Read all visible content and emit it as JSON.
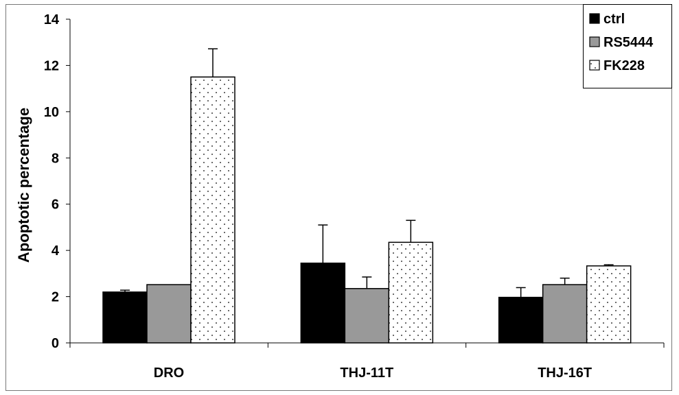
{
  "chart_data": {
    "type": "bar",
    "categories": [
      "DRO",
      "THJ-11T",
      "THJ-16T"
    ],
    "series": [
      {
        "name": "ctrl",
        "values": [
          2.2,
          3.45,
          1.97
        ],
        "errors": [
          0.08,
          1.65,
          0.42
        ],
        "color": "#000000",
        "fill": "solid"
      },
      {
        "name": "RS5444",
        "values": [
          2.52,
          2.35,
          2.52
        ],
        "errors": [
          0.0,
          0.5,
          0.28
        ],
        "color": "#999999",
        "fill": "solid"
      },
      {
        "name": "FK228",
        "values": [
          11.5,
          4.35,
          3.33
        ],
        "errors": [
          1.22,
          0.95,
          0.05
        ],
        "color": "#ffffff",
        "fill": "dots"
      }
    ],
    "ylabel": "Apoptotic percentage",
    "xlabel": "",
    "title": "",
    "ylim": [
      0,
      14
    ],
    "yticks": [
      0,
      2,
      4,
      6,
      8,
      10,
      12,
      14
    ],
    "grid": false,
    "legend_position": "top-right"
  }
}
